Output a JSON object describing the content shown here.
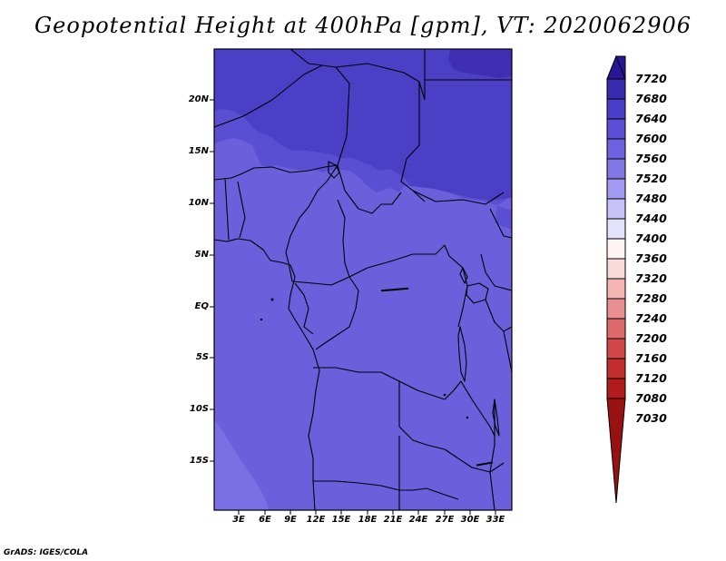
{
  "title": "Geopotential Height at 400hPa [gpm], VT: 2020062906",
  "credit": "GrADS: IGES/COLA",
  "map": {
    "lat_labels": [
      "20N",
      "15N",
      "10N",
      "5N",
      "EQ",
      "5S",
      "10S",
      "15S"
    ],
    "lon_labels": [
      "3E",
      "6E",
      "9E",
      "12E",
      "15E",
      "18E",
      "21E",
      "24E",
      "27E",
      "30E",
      "33E"
    ]
  },
  "colorbar": {
    "levels": [
      "7720",
      "7680",
      "7640",
      "7600",
      "7560",
      "7520",
      "7480",
      "7440",
      "7400",
      "7360",
      "7320",
      "7280",
      "7240",
      "7200",
      "7160",
      "7120",
      "7080",
      "7030"
    ],
    "colors": [
      "#2a1796",
      "#3a2aae",
      "#4a3dc6",
      "#5c4fd6",
      "#6f62de",
      "#8377e6",
      "#a39bef",
      "#c6c1f6",
      "#e4e1fb",
      "#fdf3f3",
      "#fbdada",
      "#f4b4b4",
      "#ea8f8f",
      "#de6b6b",
      "#d24848",
      "#c22d2d",
      "#b01c1c",
      "#981212"
    ]
  },
  "fill_colors": {
    "band_7680": "#3f2db3",
    "band_7640": "#4b3fc5",
    "band_7600": "#5a4fd3",
    "band_7560": "#6b5fdc",
    "band_7520": "#7a6fe4"
  }
}
